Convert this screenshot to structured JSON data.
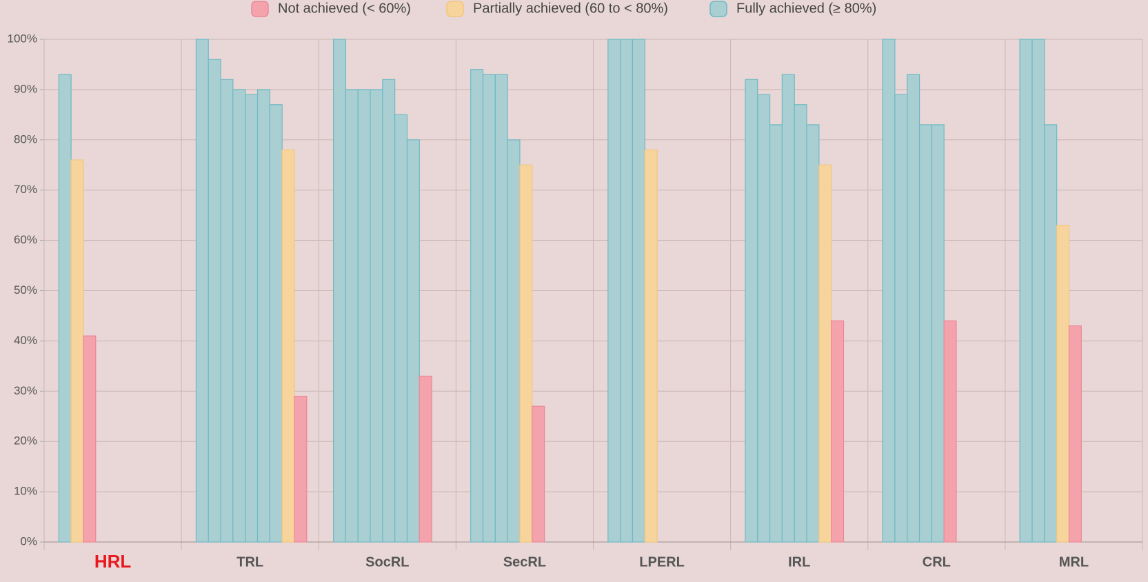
{
  "chart_data": {
    "type": "grouped-bars",
    "categories": [
      "HRL",
      "TRL",
      "SocRL",
      "SecRL",
      "LPERL",
      "IRL",
      "CRL",
      "MRL"
    ],
    "series": [
      {
        "name": "Not achieved (< 60%)",
        "color": "#f4a3ad",
        "stroke": "#ec8797",
        "values": [
          [
            41
          ],
          [
            29
          ],
          [
            33
          ],
          [
            27
          ],
          [],
          [
            44
          ],
          [
            44
          ],
          [
            43
          ]
        ]
      },
      {
        "name": "Partially achieved (60 to < 80%)",
        "color": "#f6d49b",
        "stroke": "#f1c77d",
        "values": [
          [
            76
          ],
          [
            78
          ],
          [],
          [
            75
          ],
          [
            78
          ],
          [
            75
          ],
          [],
          [
            63
          ]
        ]
      },
      {
        "name": "Fully achieved (≥ 80%)",
        "color": "#a9cfd3",
        "stroke": "#6db9c3",
        "values": [
          [
            93
          ],
          [
            100,
            96,
            92,
            90,
            89,
            90,
            87
          ],
          [
            100,
            90,
            90,
            90,
            92,
            85,
            80
          ],
          [
            94,
            93,
            93,
            80
          ],
          [
            100,
            100,
            100
          ],
          [
            92,
            89,
            83,
            93,
            87,
            83
          ],
          [
            100,
            89,
            93,
            83,
            83
          ],
          [
            100,
            100,
            83
          ]
        ]
      }
    ],
    "ylim": [
      0,
      100
    ],
    "yticks": [
      {
        "value": 0,
        "label": "0%"
      },
      {
        "value": 10,
        "label": "10%"
      },
      {
        "value": 20,
        "label": "20%"
      },
      {
        "value": 30,
        "label": "30%"
      },
      {
        "value": 40,
        "label": "40%"
      },
      {
        "value": 50,
        "label": "50%"
      },
      {
        "value": 60,
        "label": "60%"
      },
      {
        "value": 70,
        "label": "70%"
      },
      {
        "value": 80,
        "label": "80%"
      },
      {
        "value": 90,
        "label": "90%"
      },
      {
        "value": 100,
        "label": "100%"
      }
    ],
    "grid": true,
    "legend": "top"
  }
}
